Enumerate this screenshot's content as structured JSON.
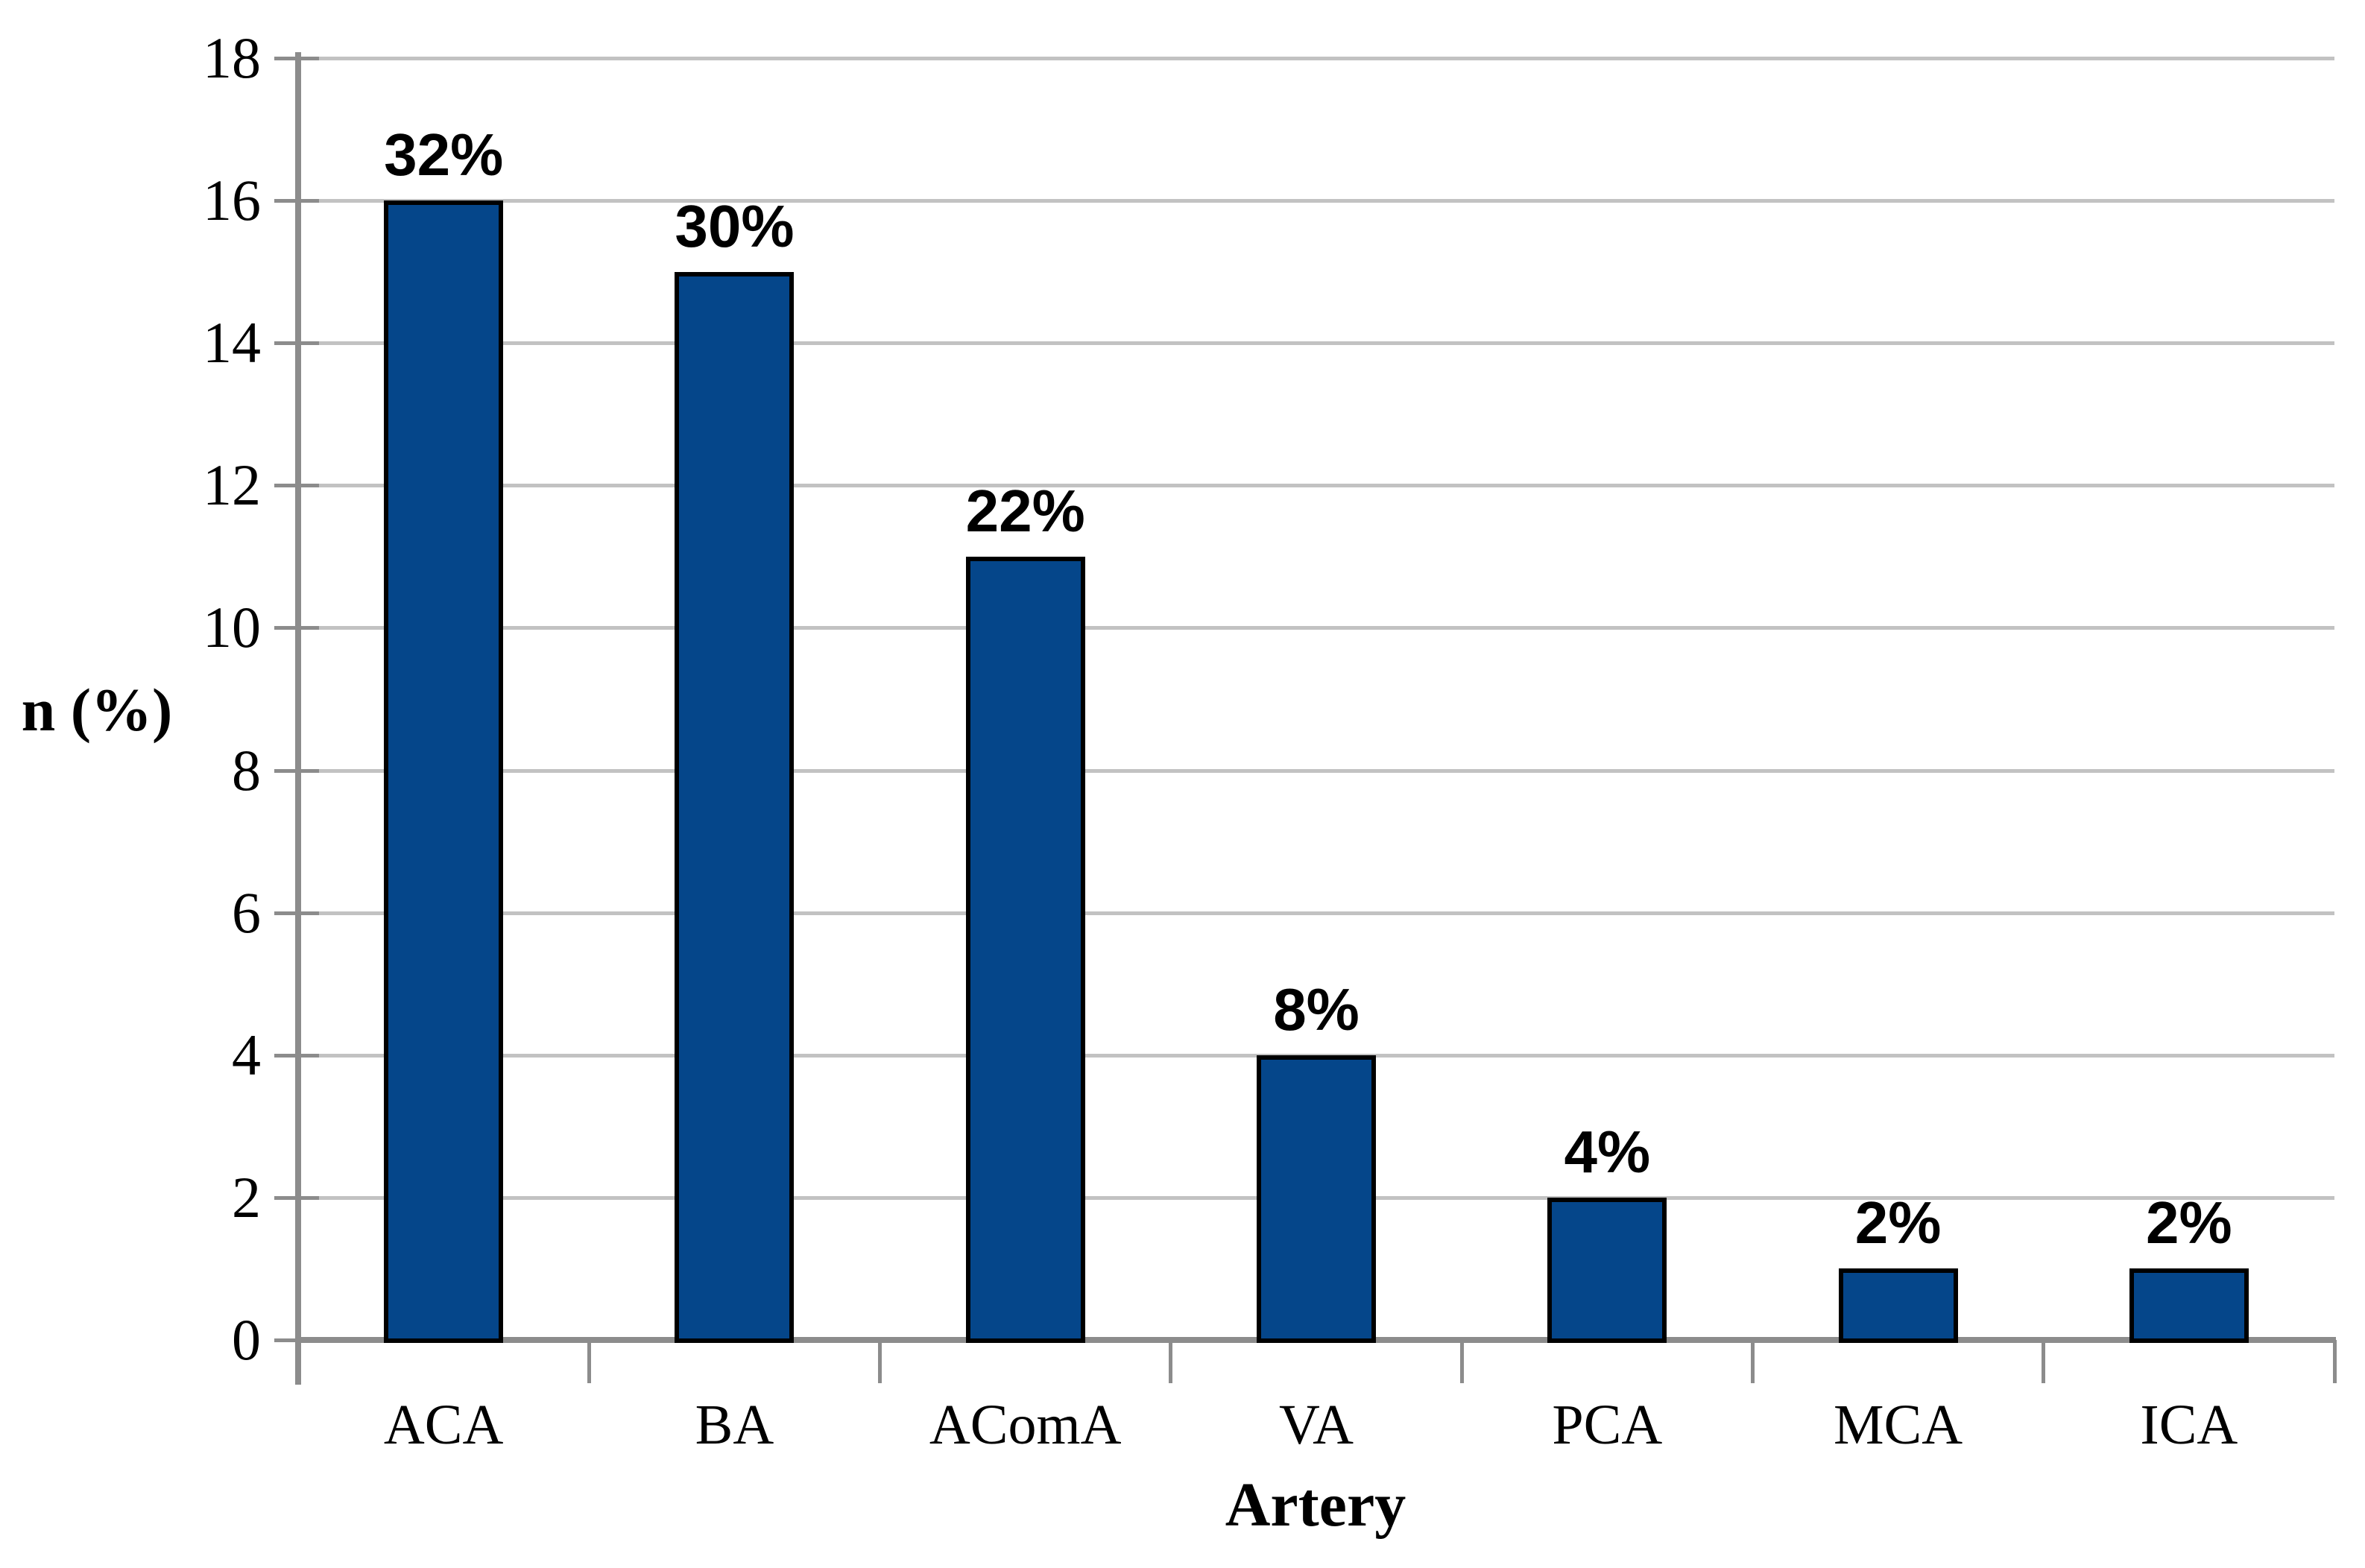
{
  "figure": {
    "background": "#FFFFFF"
  },
  "chart_data": {
    "type": "bar",
    "title": "",
    "categories": [
      "ACA",
      "BA",
      "AComA",
      "VA",
      "PCA",
      "MCA",
      "ICA"
    ],
    "values": [
      16,
      15,
      11,
      4,
      2,
      1,
      1
    ],
    "value_labels": [
      "32%",
      "30%",
      "22%",
      "8%",
      "4%",
      "2%",
      "2%"
    ],
    "xlabel": "Artery",
    "ylabel": "n (%)",
    "ylim": [
      0,
      18
    ],
    "y_ticks": [
      0,
      2,
      4,
      6,
      8,
      10,
      12,
      14,
      16,
      18
    ],
    "grid": true,
    "legend_position": "none",
    "colors": {
      "bar_fill": "#05468A",
      "bar_border": "#000000",
      "gridline": "#C2C2C2",
      "axis": "#8C8C8C",
      "text": "#000000"
    }
  }
}
